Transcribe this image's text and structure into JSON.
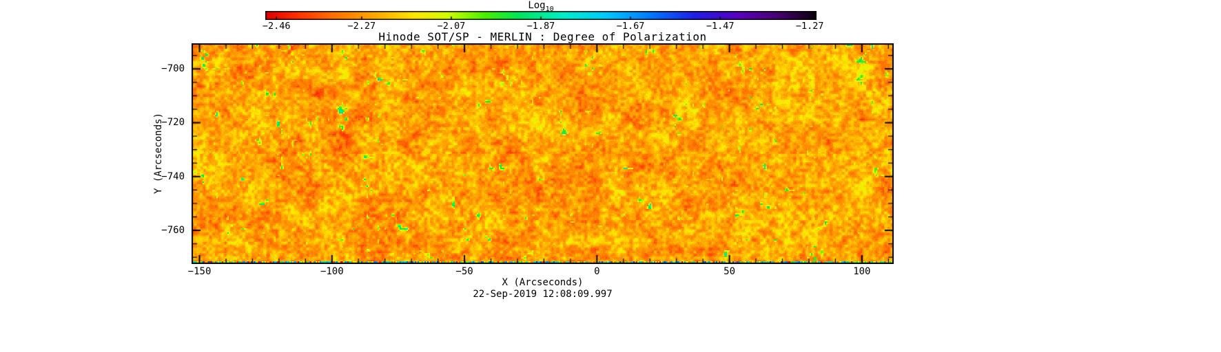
{
  "chart_data": {
    "type": "heatmap",
    "title": "Hinode SOT/SP - MERLIN : Degree of Polarization",
    "xlabel": "X (Arcseconds)",
    "ylabel": "Y (Arcseconds)",
    "timestamp": "22-Sep-2019 12:08:09.997",
    "xlim": [
      -153,
      112
    ],
    "ylim": [
      -772.5,
      -690.5
    ],
    "x_major_ticks": [
      {
        "value": -150,
        "label": "−150"
      },
      {
        "value": -100,
        "label": "−100"
      },
      {
        "value": -50,
        "label": "−50"
      },
      {
        "value": 0,
        "label": "0"
      },
      {
        "value": 50,
        "label": "50"
      },
      {
        "value": 100,
        "label": "100"
      }
    ],
    "x_minor_step": 10,
    "y_major_ticks": [
      {
        "value": -700,
        "label": "−700"
      },
      {
        "value": -720,
        "label": "−720"
      },
      {
        "value": -740,
        "label": "−740"
      },
      {
        "value": -760,
        "label": "−760"
      }
    ],
    "y_minor_step": 5,
    "colorbar": {
      "label": "Log",
      "label_sub": "10",
      "range": [
        -2.485,
        -1.255
      ],
      "ticks": [
        {
          "value": -2.46,
          "label": "−2.46"
        },
        {
          "value": -2.27,
          "label": "−2.27"
        },
        {
          "value": -2.07,
          "label": "−2.07"
        },
        {
          "value": -1.87,
          "label": "−1.87"
        },
        {
          "value": -1.67,
          "label": "−1.67"
        },
        {
          "value": -1.47,
          "label": "−1.47"
        },
        {
          "value": -1.27,
          "label": "−1.27"
        }
      ]
    },
    "colormap_stops": [
      {
        "pos": 0.0,
        "color": "#dd0000"
      },
      {
        "pos": 0.05,
        "color": "#ff2800"
      },
      {
        "pos": 0.12,
        "color": "#ff6e00"
      },
      {
        "pos": 0.2,
        "color": "#ffaa00"
      },
      {
        "pos": 0.27,
        "color": "#ffe600"
      },
      {
        "pos": 0.33,
        "color": "#d2ff00"
      },
      {
        "pos": 0.4,
        "color": "#46f000"
      },
      {
        "pos": 0.46,
        "color": "#00e65a"
      },
      {
        "pos": 0.54,
        "color": "#00f0c8"
      },
      {
        "pos": 0.62,
        "color": "#00c8ff"
      },
      {
        "pos": 0.7,
        "color": "#0078ff"
      },
      {
        "pos": 0.78,
        "color": "#1e1ee6"
      },
      {
        "pos": 0.86,
        "color": "#5a00be"
      },
      {
        "pos": 0.93,
        "color": "#46006e"
      },
      {
        "pos": 1.0,
        "color": "#0a000a"
      }
    ],
    "value_range": [
      -2.46,
      -1.27
    ],
    "field_character": "Granular solar polarization field: mostly log10 degree of polarization between -2.45 and -2.0 (red/orange/yellow texture) with sparse compact green-cyan-blue patches reaching about -1.7 to -1.5."
  }
}
